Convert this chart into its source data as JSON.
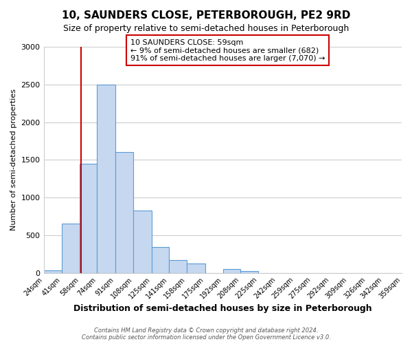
{
  "title": "10, SAUNDERS CLOSE, PETERBOROUGH, PE2 9RD",
  "subtitle": "Size of property relative to semi-detached houses in Peterborough",
  "xlabel": "Distribution of semi-detached houses by size in Peterborough",
  "ylabel": "Number of semi-detached properties",
  "bin_labels": [
    "24sqm",
    "41sqm",
    "58sqm",
    "74sqm",
    "91sqm",
    "108sqm",
    "125sqm",
    "141sqm",
    "158sqm",
    "175sqm",
    "192sqm",
    "208sqm",
    "225sqm",
    "242sqm",
    "259sqm",
    "275sqm",
    "292sqm",
    "309sqm",
    "326sqm",
    "342sqm",
    "359sqm"
  ],
  "bin_edges": [
    24,
    41,
    58,
    74,
    91,
    108,
    125,
    141,
    158,
    175,
    192,
    208,
    225,
    242,
    259,
    275,
    292,
    309,
    326,
    342,
    359
  ],
  "bar_heights": [
    30,
    650,
    1450,
    2500,
    1600,
    830,
    340,
    170,
    120,
    0,
    50,
    20,
    0,
    0,
    0,
    0,
    0,
    0,
    0,
    0
  ],
  "bar_color": "#c5d8f0",
  "bar_edge_color": "#5b9bd5",
  "ylim": [
    0,
    3000
  ],
  "yticks": [
    0,
    500,
    1000,
    1500,
    2000,
    2500,
    3000
  ],
  "property_line_x": 59,
  "property_line_color": "#cc0000",
  "annotation_title": "10 SAUNDERS CLOSE: 59sqm",
  "annotation_line1": "← 9% of semi-detached houses are smaller (682)",
  "annotation_line2": "91% of semi-detached houses are larger (7,070) →",
  "annotation_box_color": "#cc0000",
  "footer1": "Contains HM Land Registry data © Crown copyright and database right 2024.",
  "footer2": "Contains public sector information licensed under the Open Government Licence v3.0.",
  "background_color": "#ffffff",
  "grid_color": "#cccccc"
}
